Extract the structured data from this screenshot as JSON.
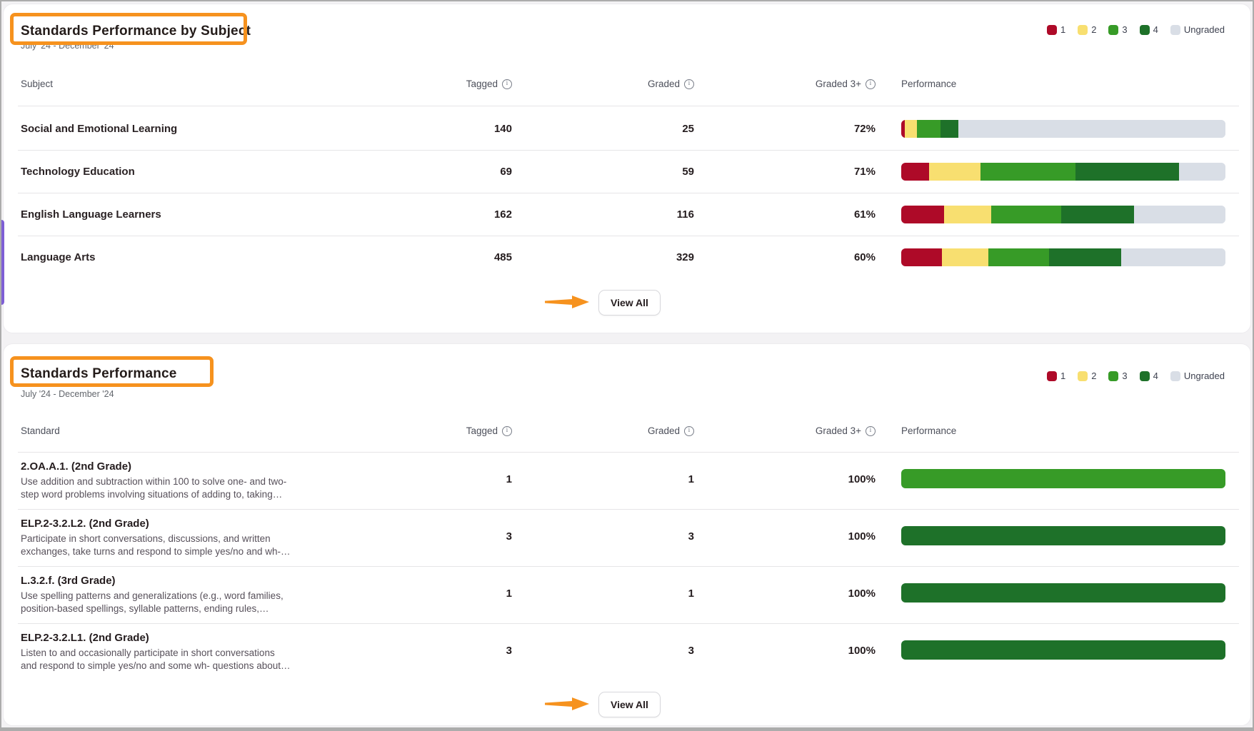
{
  "palette": {
    "colors": [
      "#AE0A28",
      "#F8DF70",
      "#379B27",
      "#1E7129",
      "#D9DEE6"
    ],
    "highlight_orange": "#F6921E"
  },
  "legend": {
    "items": [
      {
        "label": "1",
        "color": "#AE0A28"
      },
      {
        "label": "2",
        "color": "#F8DF70"
      },
      {
        "label": "3",
        "color": "#379B27"
      },
      {
        "label": "4",
        "color": "#1E7129"
      },
      {
        "label": "Ungraded",
        "color": "#D9DEE6"
      }
    ]
  },
  "cards": [
    {
      "title": "Standards Performance by Subject",
      "date_range": "July '24 - December '24",
      "columns": {
        "entity": "Subject",
        "tagged": "Tagged",
        "graded": "Graded",
        "graded_3plus": "Graded 3+",
        "performance": "Performance"
      },
      "view_all_label": "View All",
      "rows": [
        {
          "subject": "Social and Emotional Learning",
          "tagged": "140",
          "graded": "25",
          "graded_3plus": "72%",
          "segments": [
            1.0,
            3.9,
            7.2,
            5.6,
            82.3
          ]
        },
        {
          "subject": "Technology Education",
          "tagged": "69",
          "graded": "59",
          "graded_3plus": "71%",
          "segments": [
            8.5,
            15.9,
            29.3,
            31.9,
            14.4
          ]
        },
        {
          "subject": "English Language Learners",
          "tagged": "162",
          "graded": "116",
          "graded_3plus": "61%",
          "segments": [
            13.3,
            14.5,
            21.6,
            22.5,
            28.1
          ]
        },
        {
          "subject": "Language Arts",
          "tagged": "485",
          "graded": "329",
          "graded_3plus": "60%",
          "segments": [
            12.5,
            14.4,
            18.7,
            22.3,
            32.1
          ]
        }
      ]
    },
    {
      "title": "Standards Performance",
      "date_range": "July '24 - December '24",
      "columns": {
        "entity": "Standard",
        "tagged": "Tagged",
        "graded": "Graded",
        "graded_3plus": "Graded 3+",
        "performance": "Performance"
      },
      "view_all_label": "View All",
      "rows": [
        {
          "standard": "2.OA.A.1. (2nd Grade)",
          "description_line1": "Use addition and subtraction within 100 to solve one- and two-",
          "description_line2": "step word problems involving situations of adding to, taking…",
          "tagged": "1",
          "graded": "1",
          "graded_3plus": "100%",
          "segments": [
            0,
            0,
            100,
            0,
            0
          ]
        },
        {
          "standard": "ELP.2-3.2.L2. (2nd Grade)",
          "description_line1": "Participate in short conversations, discussions, and written",
          "description_line2": "exchanges, take turns and respond to simple yes/no and wh-…",
          "tagged": "3",
          "graded": "3",
          "graded_3plus": "100%",
          "segments": [
            0,
            0,
            0,
            100,
            0
          ]
        },
        {
          "standard": "L.3.2.f. (3rd Grade)",
          "description_line1": "Use spelling patterns and generalizations (e.g., word families,",
          "description_line2": "position-based spellings, syllable patterns, ending rules,…",
          "tagged": "1",
          "graded": "1",
          "graded_3plus": "100%",
          "segments": [
            0,
            0,
            0,
            100,
            0
          ]
        },
        {
          "standard": "ELP.2-3.2.L1. (2nd Grade)",
          "description_line1": "Listen to and occasionally participate in short conversations",
          "description_line2": "and respond to simple yes/no and some wh- questions about…",
          "tagged": "3",
          "graded": "3",
          "graded_3plus": "100%",
          "segments": [
            0,
            0,
            0,
            100,
            0
          ]
        }
      ]
    }
  ]
}
